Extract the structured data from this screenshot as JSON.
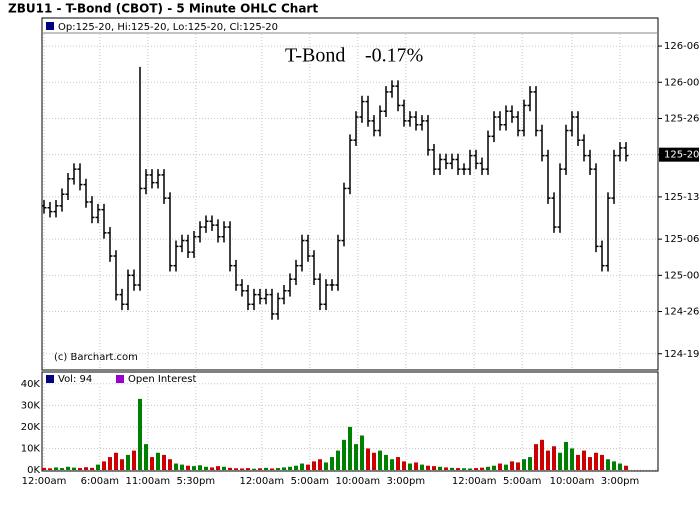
{
  "header": {
    "title": "ZBU11 - T-Bond (CBOT) - 5 Minute OHLC Chart"
  },
  "chart_data": [
    {
      "type": "ohlc",
      "legend": "Op:125-20, Hi:125-20, Lo:125-20, Cl:125-20",
      "annotation_name": "T-Bond",
      "annotation_change": "-0.17%",
      "copyright": "(c) Barchart.com",
      "color": "#000000",
      "change_color": "#cc0000",
      "grid": true,
      "ylim": [
        124.52,
        126.25
      ],
      "yticks": [
        {
          "value": 126.1875,
          "label": "126-06"
        },
        {
          "value": 126,
          "label": "126-00"
        },
        {
          "value": 125.8125,
          "label": "125-26"
        },
        {
          "value": 125.625,
          "label": "125-20"
        },
        {
          "value": 125.40625,
          "label": "125-13"
        },
        {
          "value": 125.1875,
          "label": "125-06"
        },
        {
          "value": 125,
          "label": "125-00"
        },
        {
          "value": 124.8125,
          "label": "124-26"
        },
        {
          "value": 124.59375,
          "label": "124-19"
        }
      ],
      "last": {
        "value": 125.625,
        "label": "125-20"
      },
      "open": [
        125.36,
        125.35,
        125.33,
        125.36,
        125.42,
        125.5,
        125.55,
        125.47,
        125.38,
        125.3,
        125.34,
        125.22,
        125.1,
        124.9,
        124.85,
        125.0,
        124.95,
        125.45,
        125.52,
        125.48,
        125.52,
        125.4,
        125.05,
        125.15,
        125.18,
        125.12,
        125.2,
        125.25,
        125.28,
        125.26,
        125.2,
        125.25,
        125.05,
        124.95,
        124.92,
        124.85,
        124.9,
        124.88,
        124.9,
        124.8,
        124.88,
        124.92,
        124.98,
        125.05,
        125.18,
        125.1,
        124.98,
        124.85,
        124.95,
        124.95,
        125.18,
        125.45,
        125.7,
        125.82,
        125.9,
        125.8,
        125.75,
        125.85,
        125.95,
        125.98,
        125.88,
        125.8,
        125.82,
        125.78,
        125.8,
        125.65,
        125.55,
        125.6,
        125.58,
        125.6,
        125.55,
        125.55,
        125.62,
        125.58,
        125.55,
        125.72,
        125.82,
        125.78,
        125.85,
        125.82,
        125.75,
        125.88,
        125.95,
        125.75,
        125.62,
        125.4,
        125.25,
        125.55,
        125.75,
        125.82,
        125.7,
        125.62,
        125.55,
        125.15,
        125.05,
        125.4,
        125.62,
        125.66
      ],
      "high": [
        125.39,
        125.38,
        125.39,
        125.45,
        125.53,
        125.58,
        125.58,
        125.5,
        125.41,
        125.37,
        125.37,
        125.25,
        125.13,
        124.93,
        125.03,
        125.03,
        126.08,
        125.55,
        125.55,
        125.55,
        125.55,
        125.43,
        125.18,
        125.21,
        125.21,
        125.23,
        125.28,
        125.31,
        125.31,
        125.29,
        125.28,
        125.28,
        125.08,
        124.98,
        124.95,
        124.93,
        124.93,
        124.93,
        124.93,
        124.91,
        124.95,
        125.01,
        125.08,
        125.21,
        125.21,
        125.13,
        125.01,
        124.98,
        124.98,
        125.21,
        125.48,
        125.73,
        125.85,
        125.93,
        125.93,
        125.83,
        125.88,
        125.98,
        126.01,
        126.01,
        125.91,
        125.85,
        125.85,
        125.83,
        125.83,
        125.68,
        125.63,
        125.63,
        125.63,
        125.63,
        125.58,
        125.65,
        125.65,
        125.61,
        125.75,
        125.85,
        125.85,
        125.88,
        125.88,
        125.85,
        125.91,
        125.98,
        125.98,
        125.78,
        125.65,
        125.43,
        125.58,
        125.78,
        125.85,
        125.85,
        125.73,
        125.65,
        125.58,
        125.18,
        125.43,
        125.65,
        125.69,
        125.69
      ],
      "low": [
        125.32,
        125.3,
        125.3,
        125.33,
        125.39,
        125.47,
        125.44,
        125.35,
        125.27,
        125.27,
        125.19,
        125.07,
        124.87,
        124.82,
        124.82,
        124.92,
        124.92,
        125.42,
        125.45,
        125.45,
        125.37,
        125.02,
        125.02,
        125.12,
        125.09,
        125.09,
        125.17,
        125.22,
        125.23,
        125.17,
        125.17,
        125.02,
        124.92,
        124.89,
        124.82,
        124.82,
        124.85,
        124.85,
        124.77,
        124.77,
        124.85,
        124.89,
        124.95,
        125.02,
        125.07,
        124.95,
        124.82,
        124.82,
        124.92,
        124.92,
        125.15,
        125.42,
        125.67,
        125.79,
        125.77,
        125.72,
        125.72,
        125.82,
        125.92,
        125.85,
        125.77,
        125.77,
        125.75,
        125.75,
        125.62,
        125.52,
        125.52,
        125.55,
        125.55,
        125.52,
        125.52,
        125.52,
        125.55,
        125.52,
        125.52,
        125.69,
        125.75,
        125.75,
        125.79,
        125.72,
        125.72,
        125.85,
        125.72,
        125.59,
        125.37,
        125.22,
        125.22,
        125.52,
        125.72,
        125.67,
        125.59,
        125.52,
        125.12,
        125.02,
        125.02,
        125.37,
        125.59,
        125.59
      ],
      "close": [
        125.35,
        125.33,
        125.36,
        125.42,
        125.5,
        125.55,
        125.47,
        125.38,
        125.3,
        125.34,
        125.22,
        125.1,
        124.9,
        124.85,
        125.0,
        124.95,
        125.45,
        125.52,
        125.48,
        125.52,
        125.4,
        125.05,
        125.15,
        125.18,
        125.12,
        125.2,
        125.25,
        125.28,
        125.26,
        125.2,
        125.25,
        125.05,
        124.95,
        124.92,
        124.85,
        124.9,
        124.88,
        124.9,
        124.8,
        124.88,
        124.92,
        124.98,
        125.05,
        125.18,
        125.1,
        124.98,
        124.85,
        124.95,
        124.95,
        125.18,
        125.45,
        125.7,
        125.82,
        125.9,
        125.8,
        125.75,
        125.85,
        125.95,
        125.98,
        125.88,
        125.8,
        125.82,
        125.78,
        125.8,
        125.65,
        125.55,
        125.6,
        125.58,
        125.6,
        125.55,
        125.55,
        125.62,
        125.58,
        125.55,
        125.72,
        125.82,
        125.78,
        125.85,
        125.82,
        125.75,
        125.88,
        125.95,
        125.75,
        125.62,
        125.4,
        125.25,
        125.55,
        125.75,
        125.82,
        125.7,
        125.62,
        125.55,
        125.15,
        125.05,
        125.4,
        125.62,
        125.66,
        125.62
      ]
    },
    {
      "type": "volume-bar",
      "legend": "Vol: 94",
      "legend_color": "#000080",
      "legend2": "Open Interest",
      "legend2_color": "#9900cc",
      "up_color": "#008000",
      "down_color": "#cc0000",
      "grid": true,
      "ylim": [
        0,
        45000
      ],
      "yticks": [
        {
          "value": 0,
          "label": "0K"
        },
        {
          "value": 10000,
          "label": "10K"
        },
        {
          "value": 20000,
          "label": "20K"
        },
        {
          "value": 30000,
          "label": "30K"
        },
        {
          "value": 40000,
          "label": "40K"
        }
      ],
      "xticks": [
        {
          "value": 0,
          "label": "12:00am"
        },
        {
          "value": 9.3,
          "label": "6:00am"
        },
        {
          "value": 17.3,
          "label": "11:00am"
        },
        {
          "value": 25.3,
          "label": "5:30pm"
        },
        {
          "value": 36.3,
          "label": "12:00am"
        },
        {
          "value": 44.3,
          "label": "5:00am"
        },
        {
          "value": 52.3,
          "label": "10:00am"
        },
        {
          "value": 60.3,
          "label": "3:00pm"
        },
        {
          "value": 71.7,
          "label": "12:00am"
        },
        {
          "value": 79.7,
          "label": "5:00am"
        },
        {
          "value": 88,
          "label": "10:00am"
        },
        {
          "value": 96,
          "label": "3:00pm"
        }
      ],
      "values": [
        1000,
        800,
        1200,
        900,
        1500,
        1100,
        900,
        1300,
        1000,
        2500,
        4000,
        6000,
        8000,
        5000,
        7000,
        9000,
        33000,
        12000,
        6000,
        8000,
        7000,
        5000,
        3000,
        2500,
        2000,
        1800,
        2200,
        1500,
        1200,
        1800,
        1500,
        1000,
        800,
        700,
        900,
        600,
        800,
        1000,
        700,
        900,
        1200,
        1500,
        2000,
        3000,
        2500,
        4000,
        5000,
        3500,
        6000,
        9000,
        14000,
        20000,
        12000,
        16000,
        10000,
        8000,
        9000,
        7000,
        5000,
        6000,
        4000,
        3000,
        3500,
        2500,
        2000,
        1800,
        1500,
        1200,
        1000,
        900,
        800,
        700,
        900,
        1100,
        1500,
        2000,
        3000,
        2500,
        4000,
        3500,
        5000,
        6000,
        12000,
        14000,
        9000,
        11000,
        8000,
        13000,
        10000,
        7000,
        9000,
        6000,
        8000,
        7000,
        5000,
        4000,
        3000,
        2000
      ]
    }
  ]
}
